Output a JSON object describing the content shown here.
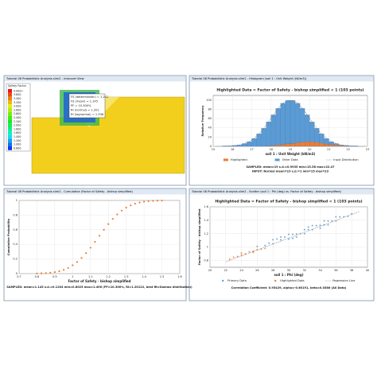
{
  "windows": [
    "Tutorial 08 Probabilistic Analysis.slim2 - Interpret View",
    "Tutorial 08 Probabilistic Analysis.slim2 - Histogram (soil 1 : Unit Weight (kN/m3))",
    "Tutorial 08 Probabilistic Analysis.slim2 - Cumulative (Factor of Safety - bishop simplified)",
    "Tutorial 08 Probabilistic Analysis.slim2 - Scatter (soil 1 : Phi (deg) vs. Factor of Safety - bishop simplified)"
  ],
  "interpret_view": {
    "legend_title": "Safety Factor",
    "legend_values": [
      "0.800",
      "1.000",
      "1.200",
      "1.400",
      "1.600",
      "1.800",
      "2.000",
      "2.200",
      "2.400",
      "2.600",
      "2.800",
      "3.000",
      "3.200",
      "3.400",
      "3.600",
      "4.000+"
    ],
    "info": [
      "FS (deterministic) = 1.241",
      "FS (mean) = 1.145",
      "PF = 10.300%",
      "RI (normal) = 1.201",
      "RI (lognormal) = 1.336"
    ]
  },
  "chart_data": [
    {
      "type": "histogram",
      "title": "Highlighted Data = Factor of Safety - bishop simplified < 1  (103 points)",
      "x_label": "soil 1 : Unit Weight (kN/m3)",
      "y_label": "Relative Frequency",
      "bins": [
        15,
        15.25,
        15.5,
        15.75,
        16,
        16.25,
        16.5,
        16.75,
        17,
        17.25,
        17.5,
        17.75,
        18,
        18.25,
        18.5,
        18.75,
        19,
        19.25,
        19.5,
        19.75,
        20,
        20.25,
        20.5,
        20.75,
        21,
        21.25,
        21.5,
        21.75,
        22,
        22.25,
        22.5,
        22.75,
        23
      ],
      "series": [
        {
          "name": "Highlighted",
          "color": "#ed7d31",
          "values": [
            0,
            0,
            0,
            0,
            0,
            0,
            0,
            0,
            0,
            0,
            0,
            1,
            2,
            3,
            4,
            6,
            6,
            8,
            9,
            10,
            10,
            9,
            7,
            5,
            4,
            3,
            2,
            1,
            0,
            0,
            0,
            0
          ]
        },
        {
          "name": "Other Data",
          "color": "#5b9bd5",
          "values": [
            0,
            0,
            1,
            1,
            2,
            3,
            6,
            10,
            17,
            27,
            39,
            52,
            66,
            79,
            89,
            93,
            93,
            85,
            73,
            58,
            43,
            30,
            20,
            12,
            6,
            3,
            1,
            1,
            1,
            1,
            0,
            0
          ]
        },
        {
          "name": "Input Distribution",
          "color": "#777777",
          "values": [
            0,
            0,
            0.3,
            0.8,
            1.6,
            3.2,
            6,
            10.4,
            17.2,
            26.7,
            38.8,
            53.1,
            68.2,
            82.3,
            93.2,
            99.2,
            99.2,
            93.2,
            82.3,
            68.2,
            53.1,
            38.8,
            26.7,
            17.2,
            10.4,
            6,
            3.2,
            1.6,
            0.8,
            0.3,
            0,
            0
          ]
        }
      ],
      "xlim": [
        15,
        23
      ],
      "xticks": [
        15,
        16,
        17,
        18,
        19,
        20,
        21,
        22,
        23
      ],
      "ylim": [
        0,
        110
      ],
      "yticks": [
        0,
        20,
        40,
        60,
        80,
        100
      ],
      "grid": true,
      "stats": [
        "SAMPLED: mean=19 s.d.=0.9935 min=15.58 max=22.47",
        "INPUT: Normal mean=19 s.d.=1 min=15 max=23"
      ]
    },
    {
      "type": "line",
      "x_label": "Factor of Safety - bishop simplified",
      "y_label": "Cumulative Probability",
      "x": [
        0.8,
        0.825,
        0.85,
        0.875,
        0.9,
        0.925,
        0.95,
        0.975,
        1,
        1.025,
        1.05,
        1.075,
        1.1,
        1.125,
        1.15,
        1.175,
        1.2,
        1.225,
        1.25,
        1.275,
        1.3,
        1.325,
        1.35,
        1.375,
        1.4,
        1.425,
        1.45,
        1.475,
        1.5
      ],
      "values": [
        0.002,
        0.004,
        0.007,
        0.012,
        0.021,
        0.033,
        0.052,
        0.078,
        0.114,
        0.159,
        0.214,
        0.28,
        0.354,
        0.434,
        0.517,
        0.599,
        0.677,
        0.748,
        0.809,
        0.861,
        0.902,
        0.933,
        0.956,
        0.972,
        0.983,
        0.99,
        0.994,
        0.997,
        0.998
      ],
      "color": "#ed7d31",
      "xlim": [
        0.7,
        1.6
      ],
      "xticks": [
        0.7,
        0.8,
        0.9,
        1,
        1.1,
        1.2,
        1.3,
        1.4,
        1.5,
        1.6
      ],
      "ylim": [
        0,
        1
      ],
      "yticks": [
        0,
        0.2,
        0.4,
        0.6,
        0.8,
        1
      ],
      "grid": true,
      "stats": [
        "SAMPLED: mean=1.145 s.d.=0.1204 min=0.8025 max=1.496 (PF=10.300%, RI=1.20122, best fit=Gamma distribution)"
      ]
    },
    {
      "type": "scatter",
      "title": "Highlighted Data = Factor of Safety - bishop simplified < 1  (103 points)",
      "x_label": "soil 1 : Phi (deg)",
      "y_label": "Factor of Safety - bishop simplified",
      "series": [
        {
          "name": "Primary Data",
          "color": "#5b9bd5",
          "x": [
            26,
            27,
            27.5,
            28,
            28.5,
            29,
            29.5,
            30,
            30.5,
            31,
            31.5,
            32,
            32.5,
            33,
            33.5,
            34,
            34.5,
            35,
            35.5,
            36,
            36.5,
            37,
            37.5,
            38,
            29,
            30,
            31,
            32,
            33,
            34,
            35,
            36,
            28,
            30.5,
            32.5,
            34.5
          ],
          "values": [
            1.01,
            1.022,
            1.06,
            1.05,
            1.12,
            1.108,
            1.15,
            1.12,
            1.19,
            1.194,
            1.2,
            1.26,
            1.259,
            1.26,
            1.32,
            1.323,
            1.33,
            1.39,
            1.388,
            1.39,
            1.45,
            1.452,
            1.46,
            1.495,
            1.15,
            1.19,
            1.15,
            1.2,
            1.32,
            1.28,
            1.33,
            1.45,
            1.11,
            1.13,
            1.3,
            1.39
          ]
        },
        {
          "name": "Highlighted Data",
          "color": "#ed7d31",
          "x": [
            22.5,
            23,
            23.5,
            24,
            24.5,
            25,
            25.5,
            26,
            26.5,
            27,
            24,
            25.5
          ],
          "values": [
            0.82,
            0.85,
            0.86,
            0.88,
            0.9,
            0.93,
            0.94,
            0.96,
            0.97,
            0.98,
            0.91,
            0.92
          ]
        },
        {
          "name": "Regression Line",
          "color": "#888888",
          "style": "line",
          "x": [
            22,
            39
          ],
          "values": [
            0.78,
            1.53
          ]
        }
      ],
      "xlim": [
        20,
        40
      ],
      "xticks": [
        20,
        22,
        24,
        26,
        28,
        30,
        32,
        34,
        36,
        38,
        40
      ],
      "ylim": [
        0.7,
        1.6
      ],
      "yticks": [
        0.8,
        1,
        1.2,
        1.4,
        1.6
      ],
      "grid": true,
      "stats": [
        "Correlation Coefficient: 0.95429, alpha=-0.60191, beta=0.0386 (All Data)"
      ]
    }
  ]
}
